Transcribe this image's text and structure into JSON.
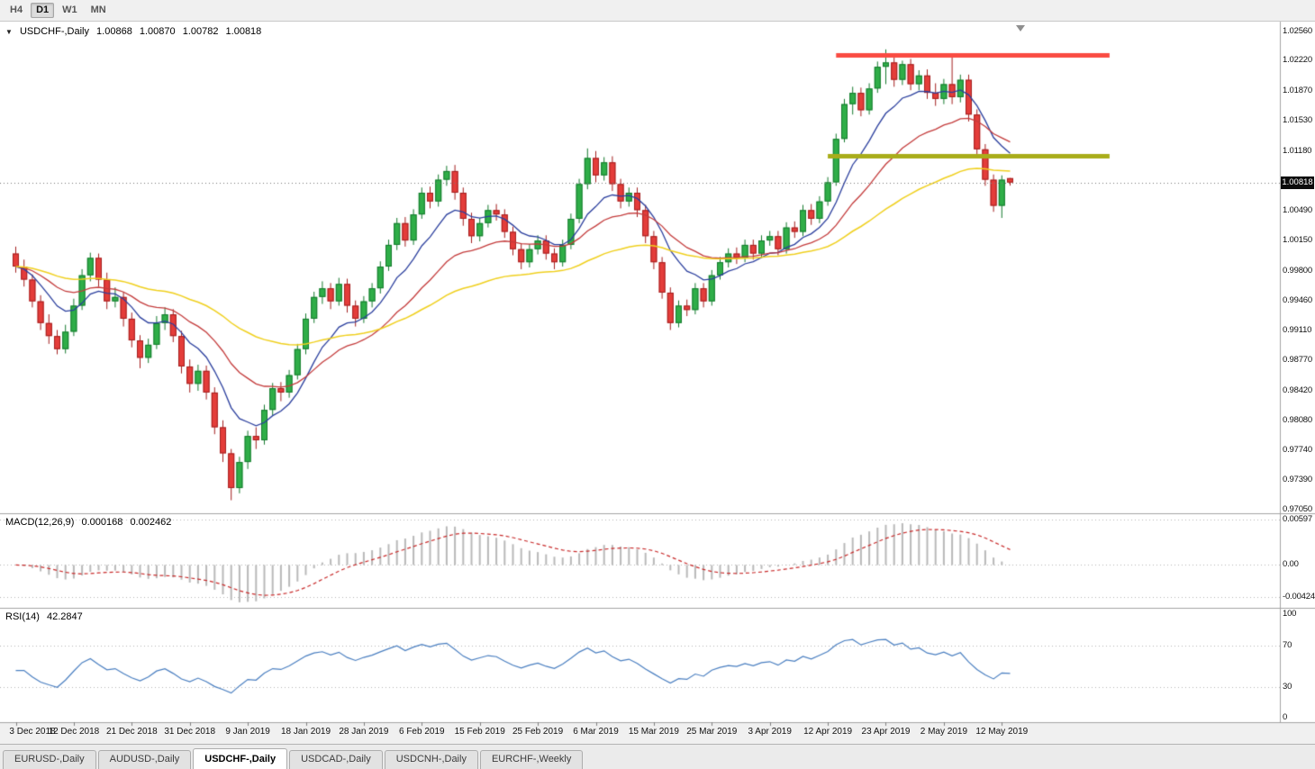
{
  "window": {
    "bg": "#f0f0f0",
    "chart_bg": "#ffffff"
  },
  "icons": {
    "symbol_dropdown": "▼"
  },
  "toolbar": {
    "timeframes": [
      {
        "label": "H4",
        "active": false
      },
      {
        "label": "D1",
        "active": true
      },
      {
        "label": "W1",
        "active": false
      },
      {
        "label": "MN",
        "active": false
      }
    ]
  },
  "main_panel": {
    "symbol_label": "USDCHF-,Daily",
    "ohlc": {
      "open": "1.00868",
      "high": "1.00870",
      "low": "1.00782",
      "close": "1.00818"
    },
    "current_price": "1.00818",
    "price_labels": [
      "1.02560",
      "1.02220",
      "1.01870",
      "1.01530",
      "1.01180",
      "1.00490",
      "1.00150",
      "0.99800",
      "0.99460",
      "0.99110",
      "0.98770",
      "0.98420",
      "0.98080",
      "0.97740",
      "0.97390",
      "0.97050"
    ]
  },
  "macd_panel": {
    "label": "MACD(12,26,9)",
    "value_main": "0.000168",
    "value_signal": "0.002462",
    "axis_labels": [
      {
        "text": "0.00597",
        "value": 0.00597
      },
      {
        "text": "0.00",
        "value": 0
      },
      {
        "text": "-0.00424",
        "value": -0.00424
      }
    ]
  },
  "rsi_panel": {
    "label": "RSI(14)",
    "value": "42.2847",
    "axis_labels": [
      {
        "text": "100",
        "value": 100
      },
      {
        "text": "70",
        "value": 70
      },
      {
        "text": "30",
        "value": 30
      },
      {
        "text": "0",
        "value": 0
      }
    ],
    "levels": [
      70,
      30
    ]
  },
  "date_axis": {
    "labels": [
      {
        "text": "3 Dec 2018",
        "index": 0
      },
      {
        "text": "12 Dec 2018",
        "index": 7
      },
      {
        "text": "21 Dec 2018",
        "index": 14
      },
      {
        "text": "31 Dec 2018",
        "index": 21
      },
      {
        "text": "9 Jan 2019",
        "index": 28
      },
      {
        "text": "18 Jan 2019",
        "index": 35
      },
      {
        "text": "28 Jan 2019",
        "index": 42
      },
      {
        "text": "6 Feb 2019",
        "index": 49
      },
      {
        "text": "15 Feb 2019",
        "index": 56
      },
      {
        "text": "25 Feb 2019",
        "index": 63
      },
      {
        "text": "6 Mar 2019",
        "index": 70
      },
      {
        "text": "15 Mar 2019",
        "index": 77
      },
      {
        "text": "25 Mar 2019",
        "index": 84
      },
      {
        "text": "3 Apr 2019",
        "index": 91
      },
      {
        "text": "12 Apr 2019",
        "index": 98
      },
      {
        "text": "23 Apr 2019",
        "index": 105
      },
      {
        "text": "2 May 2019",
        "index": 112
      },
      {
        "text": "12 May 2019",
        "index": 119
      }
    ]
  },
  "tabs": [
    {
      "label": "EURUSD-,Daily",
      "active": false
    },
    {
      "label": "AUDUSD-,Daily",
      "active": false
    },
    {
      "label": "USDCHF-,Daily",
      "active": true
    },
    {
      "label": "USDCAD-,Daily",
      "active": false
    },
    {
      "label": "USDCNH-,Daily",
      "active": false
    },
    {
      "label": "EURCHF-,Weekly",
      "active": false
    }
  ],
  "chart_data": {
    "type": "candlestick",
    "title": "USDCHF-,Daily",
    "symbol": "USDCHF",
    "timeframe": "Daily",
    "price_range": [
      0.9701,
      1.0267
    ],
    "rsi_range": [
      0,
      100
    ],
    "candles": [
      [
        1.0,
        1.0008,
        0.9978,
        0.9985
      ],
      [
        0.9985,
        0.9993,
        0.9962,
        0.997
      ],
      [
        0.997,
        0.9976,
        0.9938,
        0.9945
      ],
      [
        0.9945,
        0.9952,
        0.9912,
        0.992
      ],
      [
        0.992,
        0.993,
        0.9896,
        0.9905
      ],
      [
        0.9905,
        0.9912,
        0.9884,
        0.989
      ],
      [
        0.989,
        0.9918,
        0.9885,
        0.991
      ],
      [
        0.991,
        0.9948,
        0.9905,
        0.994
      ],
      [
        0.994,
        0.9982,
        0.9935,
        0.9975
      ],
      [
        0.9975,
        1.0001,
        0.9968,
        0.9995
      ],
      [
        0.9995,
        1.0,
        0.9962,
        0.997
      ],
      [
        0.997,
        0.9978,
        0.9936,
        0.9945
      ],
      [
        0.9945,
        0.9961,
        0.9938,
        0.995
      ],
      [
        0.995,
        0.9956,
        0.9916,
        0.9925
      ],
      [
        0.9925,
        0.9932,
        0.9892,
        0.99
      ],
      [
        0.99,
        0.9906,
        0.9868,
        0.988
      ],
      [
        0.988,
        0.9902,
        0.9874,
        0.9895
      ],
      [
        0.9895,
        0.9928,
        0.989,
        0.992
      ],
      [
        0.992,
        0.9938,
        0.9912,
        0.993
      ],
      [
        0.993,
        0.9936,
        0.9898,
        0.9905
      ],
      [
        0.9905,
        0.9911,
        0.9862,
        0.987
      ],
      [
        0.987,
        0.9878,
        0.984,
        0.985
      ],
      [
        0.985,
        0.9872,
        0.9842,
        0.9865
      ],
      [
        0.9865,
        0.9871,
        0.9832,
        0.984
      ],
      [
        0.984,
        0.9846,
        0.9792,
        0.98
      ],
      [
        0.98,
        0.9808,
        0.976,
        0.977
      ],
      [
        0.977,
        0.9775,
        0.9716,
        0.973
      ],
      [
        0.973,
        0.9766,
        0.9724,
        0.976
      ],
      [
        0.976,
        0.9796,
        0.9752,
        0.979
      ],
      [
        0.979,
        0.98,
        0.9775,
        0.9785
      ],
      [
        0.9785,
        0.9826,
        0.978,
        0.982
      ],
      [
        0.982,
        0.9851,
        0.9814,
        0.9845
      ],
      [
        0.9845,
        0.9852,
        0.983,
        0.984
      ],
      [
        0.984,
        0.9866,
        0.9834,
        0.986
      ],
      [
        0.986,
        0.9896,
        0.9855,
        0.989
      ],
      [
        0.989,
        0.9931,
        0.9884,
        0.9925
      ],
      [
        0.9925,
        0.9956,
        0.992,
        0.995
      ],
      [
        0.995,
        0.9968,
        0.9942,
        0.996
      ],
      [
        0.996,
        0.9966,
        0.9936,
        0.9945
      ],
      [
        0.9945,
        0.9972,
        0.994,
        0.9965
      ],
      [
        0.9965,
        0.9971,
        0.9932,
        0.994
      ],
      [
        0.994,
        0.9946,
        0.9916,
        0.9925
      ],
      [
        0.9925,
        0.9951,
        0.992,
        0.9945
      ],
      [
        0.9945,
        0.9966,
        0.9938,
        0.996
      ],
      [
        0.996,
        0.9991,
        0.9954,
        0.9985
      ],
      [
        0.9985,
        1.0016,
        0.998,
        1.001
      ],
      [
        1.001,
        1.0041,
        1.0004,
        1.0035
      ],
      [
        1.0035,
        1.0042,
        1.0008,
        1.0015
      ],
      [
        1.0015,
        1.0051,
        1.001,
        1.0045
      ],
      [
        1.0045,
        1.0076,
        1.004,
        1.007
      ],
      [
        1.007,
        1.0077,
        1.0052,
        1.006
      ],
      [
        1.006,
        1.0091,
        1.0054,
        1.0085
      ],
      [
        1.0085,
        1.0101,
        1.0078,
        1.0095
      ],
      [
        1.0095,
        1.0102,
        1.0062,
        1.007
      ],
      [
        1.007,
        1.0076,
        1.0032,
        1.004
      ],
      [
        1.004,
        1.0047,
        1.0012,
        1.002
      ],
      [
        1.002,
        1.0041,
        1.0014,
        1.0035
      ],
      [
        1.0035,
        1.0056,
        1.003,
        1.005
      ],
      [
        1.005,
        1.0057,
        1.0038,
        1.0045
      ],
      [
        1.0045,
        1.0051,
        1.0018,
        1.0025
      ],
      [
        1.0025,
        1.0031,
        0.9998,
        1.0005
      ],
      [
        1.0005,
        1.0012,
        0.9982,
        0.999
      ],
      [
        0.999,
        1.0011,
        0.9984,
        1.0005
      ],
      [
        1.0005,
        1.0021,
        0.9999,
        1.0015
      ],
      [
        1.0015,
        1.0021,
        0.9993,
        1.0
      ],
      [
        1.0,
        1.0006,
        0.9982,
        0.999
      ],
      [
        0.999,
        1.0016,
        0.9985,
        1.001
      ],
      [
        1.001,
        1.0046,
        1.0005,
        1.004
      ],
      [
        1.004,
        1.0086,
        1.0035,
        1.008
      ],
      [
        1.008,
        1.0121,
        1.0074,
        1.011
      ],
      [
        1.011,
        1.0118,
        1.0082,
        1.009
      ],
      [
        1.009,
        1.0111,
        1.0084,
        1.0105
      ],
      [
        1.0105,
        1.0112,
        1.0072,
        1.008
      ],
      [
        1.008,
        1.0086,
        1.0052,
        1.006
      ],
      [
        1.006,
        1.0076,
        1.0054,
        1.007
      ],
      [
        1.007,
        1.0076,
        1.0042,
        1.005
      ],
      [
        1.005,
        1.0056,
        1.0012,
        1.002
      ],
      [
        1.002,
        1.0026,
        0.9982,
        0.999
      ],
      [
        0.999,
        0.9996,
        0.9948,
        0.9955
      ],
      [
        0.9955,
        0.9961,
        0.9912,
        0.992
      ],
      [
        0.992,
        0.9946,
        0.9915,
        0.994
      ],
      [
        0.994,
        0.9947,
        0.9928,
        0.9935
      ],
      [
        0.9935,
        0.9966,
        0.993,
        0.996
      ],
      [
        0.996,
        0.9966,
        0.9938,
        0.9945
      ],
      [
        0.9945,
        0.9981,
        0.994,
        0.9975
      ],
      [
        0.9975,
        0.9996,
        0.997,
        0.999
      ],
      [
        0.999,
        1.0006,
        0.9984,
        1.0
      ],
      [
        1.0,
        1.0007,
        0.9988,
        0.9995
      ],
      [
        0.9995,
        1.0016,
        0.999,
        1.001
      ],
      [
        1.001,
        1.0016,
        0.9993,
        1.0
      ],
      [
        1.0,
        1.0021,
        0.9995,
        1.0015
      ],
      [
        1.0015,
        1.0026,
        1.0009,
        1.002
      ],
      [
        1.002,
        1.0026,
        0.9998,
        1.0005
      ],
      [
        1.0005,
        1.0036,
        1.0,
        1.003
      ],
      [
        1.003,
        1.0037,
        1.0018,
        1.0025
      ],
      [
        1.0025,
        1.0056,
        1.002,
        1.005
      ],
      [
        1.005,
        1.0057,
        1.0033,
        1.004
      ],
      [
        1.004,
        1.0066,
        1.0035,
        1.006
      ],
      [
        1.006,
        1.0088,
        1.0055,
        1.0082
      ],
      [
        1.0082,
        1.0138,
        1.0078,
        1.0132
      ],
      [
        1.0132,
        1.0178,
        1.0128,
        1.0172
      ],
      [
        1.0172,
        1.0192,
        1.016,
        1.0185
      ],
      [
        1.0185,
        1.0191,
        1.0158,
        1.0165
      ],
      [
        1.0165,
        1.0196,
        1.016,
        1.019
      ],
      [
        1.019,
        1.0221,
        1.0185,
        1.0215
      ],
      [
        1.0215,
        1.0235,
        1.0195,
        1.022
      ],
      [
        1.022,
        1.0226,
        1.0192,
        1.02
      ],
      [
        1.02,
        1.0222,
        1.0194,
        1.0218
      ],
      [
        1.0218,
        1.0224,
        1.0188,
        1.0195
      ],
      [
        1.0195,
        1.0211,
        1.0188,
        1.0205
      ],
      [
        1.0205,
        1.0212,
        1.0178,
        1.0185
      ],
      [
        1.0185,
        1.0196,
        1.017,
        1.0178
      ],
      [
        1.0178,
        1.0201,
        1.0172,
        1.0195
      ],
      [
        1.0195,
        1.0226,
        1.0172,
        1.018
      ],
      [
        1.018,
        1.0206,
        1.0174,
        1.02
      ],
      [
        1.02,
        1.0206,
        1.0152,
        1.016
      ],
      [
        1.016,
        1.0166,
        1.0112,
        1.012
      ],
      [
        1.012,
        1.0126,
        1.0078,
        1.0085
      ],
      [
        1.0085,
        1.0091,
        1.0048,
        1.0055
      ],
      [
        1.0055,
        1.009,
        1.0041,
        1.0085
      ],
      [
        1.00868,
        1.0087,
        1.00782,
        1.00818
      ]
    ],
    "moving_averages": [
      {
        "name": "fast-ma",
        "period": 9,
        "color": "#2b3f9e",
        "width": 1.3
      },
      {
        "name": "medium-ma",
        "period": 21,
        "color": "#c43b3b",
        "width": 1.3
      },
      {
        "name": "slow-ma",
        "period": 50,
        "color": "#f0d01e",
        "width": 1.5
      }
    ],
    "indicators": [
      {
        "name": "MACD",
        "params": [
          12,
          26,
          9
        ]
      },
      {
        "name": "RSI",
        "params": [
          14
        ]
      }
    ],
    "hlines": [
      {
        "name": "resistance-line",
        "price": 1.0228,
        "from_index": 99,
        "to_index": 132,
        "color": "#fa4b42",
        "width": 5
      },
      {
        "name": "support-line",
        "price": 1.0112,
        "from_index": 98,
        "to_index": 132,
        "color": "#a9ad1a",
        "width": 5
      }
    ],
    "colors": {
      "up": "#2fae48",
      "up_border": "#157a2e",
      "down": "#e43d3a",
      "down_border": "#a31f1f",
      "macd_histogram": "#b9b9b9",
      "macd_signal": "#c92b2b",
      "rsi_line": "#4a7fc1",
      "current_price_line": "#777777",
      "grid_dotted": "#b5b5b5",
      "panel_border": "#a3a3a3"
    }
  }
}
